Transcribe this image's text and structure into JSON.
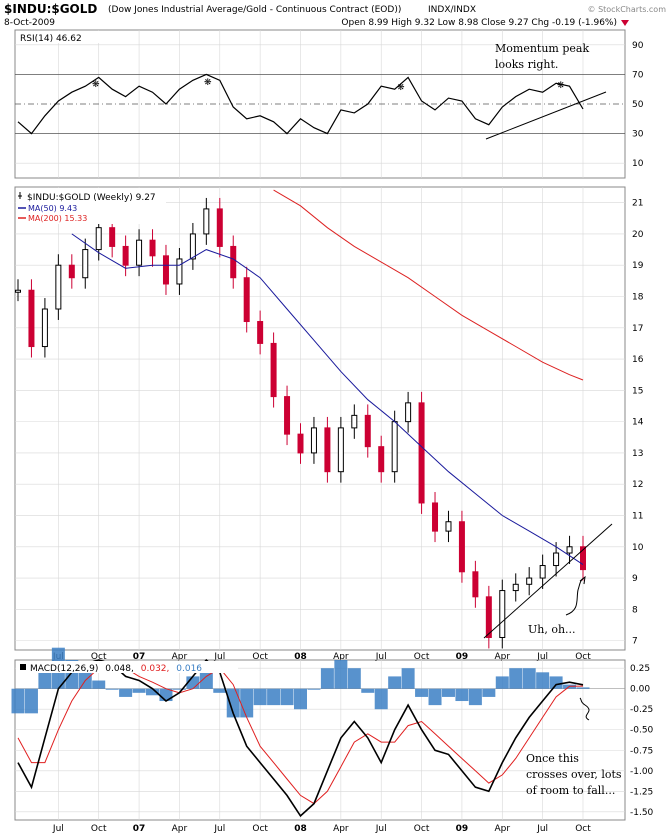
{
  "header": {
    "symbol": "$INDU:$GOLD",
    "description": "(Dow Jones Industrial Average/Gold - Continuous Contract (EOD))",
    "exchange": "INDX/INDX",
    "date": "8-Oct-2009",
    "ohlc_text": "Open 8.99  High 9.32  Low 8.98  Close 9.27  Chg -0.19 (-1.96%)",
    "watermark": "© StockCharts.com"
  },
  "colors": {
    "price_up": "#000000",
    "price_down": "#cc0033",
    "ma50": "#1a1a9c",
    "ma200": "#dd2222",
    "macd_line": "#000000",
    "signal_line": "#e02020",
    "histogram": "#3b7fc4",
    "rsi_line": "#000000",
    "rsi_oversold_fill": "#a05050",
    "grid": "#d8d8d8"
  },
  "chart_data": [
    {
      "type": "line",
      "panel": "rsi",
      "title": "RSI(14) 46.62",
      "ylim": [
        0,
        100
      ],
      "yticks": [
        10,
        30,
        50,
        70,
        90
      ],
      "reference_lines": [
        30,
        50,
        70
      ],
      "annotation": "Momentum peak looks right.",
      "x_date_range": [
        "2006-04",
        "2009-10"
      ],
      "series": [
        {
          "name": "RSI(14)",
          "x": [
            "2006-04",
            "2006-05",
            "2006-06",
            "2006-07",
            "2006-08",
            "2006-09",
            "2006-10",
            "2006-11",
            "2006-12",
            "2007-01",
            "2007-02",
            "2007-03",
            "2007-04",
            "2007-05",
            "2007-06",
            "2007-07",
            "2007-08",
            "2007-09",
            "2007-10",
            "2007-11",
            "2007-12",
            "2008-01",
            "2008-02",
            "2008-03",
            "2008-04",
            "2008-05",
            "2008-06",
            "2008-07",
            "2008-08",
            "2008-09",
            "2008-10",
            "2008-11",
            "2008-12",
            "2009-01",
            "2009-02",
            "2009-03",
            "2009-04",
            "2009-05",
            "2009-06",
            "2009-07",
            "2009-08",
            "2009-09",
            "2009-10"
          ],
          "values": [
            38,
            30,
            42,
            52,
            58,
            62,
            68,
            60,
            55,
            62,
            58,
            50,
            60,
            66,
            70,
            66,
            48,
            40,
            42,
            38,
            30,
            40,
            34,
            30,
            46,
            44,
            50,
            62,
            60,
            68,
            52,
            46,
            54,
            52,
            40,
            36,
            48,
            55,
            60,
            58,
            64,
            62,
            46.62
          ]
        }
      ]
    },
    {
      "type": "line",
      "panel": "price",
      "title": "$INDU:$GOLD (Weekly) 9.27",
      "ylim": [
        6.7,
        21.5
      ],
      "yticks": [
        7,
        8,
        9,
        10,
        11,
        12,
        13,
        14,
        15,
        16,
        17,
        18,
        19,
        20,
        21
      ],
      "annotation": "Uh, oh...",
      "legend": [
        "$INDU:$GOLD (Weekly) 9.27",
        "MA(50) 9.43",
        "MA(200) 15.33"
      ],
      "series": [
        {
          "name": "$INDU:$GOLD",
          "x": [
            "2006-04",
            "2006-05",
            "2006-06",
            "2006-07",
            "2006-08",
            "2006-09",
            "2006-10",
            "2006-11",
            "2006-12",
            "2007-01",
            "2007-02",
            "2007-03",
            "2007-04",
            "2007-05",
            "2007-06",
            "2007-07",
            "2007-08",
            "2007-09",
            "2007-10",
            "2007-11",
            "2007-12",
            "2008-01",
            "2008-02",
            "2008-03",
            "2008-04",
            "2008-05",
            "2008-06",
            "2008-07",
            "2008-08",
            "2008-09",
            "2008-10",
            "2008-11",
            "2008-12",
            "2009-01",
            "2009-02",
            "2009-03",
            "2009-04",
            "2009-05",
            "2009-06",
            "2009-07",
            "2009-08",
            "2009-09",
            "2009-10"
          ],
          "values": [
            18.2,
            16.4,
            17.6,
            19.0,
            18.6,
            19.5,
            20.2,
            19.6,
            19.0,
            19.8,
            19.3,
            18.4,
            19.2,
            20.0,
            20.8,
            19.6,
            18.6,
            17.2,
            16.5,
            14.8,
            13.6,
            13.0,
            13.8,
            12.4,
            13.8,
            14.2,
            13.2,
            12.4,
            14.0,
            14.6,
            11.4,
            10.5,
            10.8,
            9.2,
            8.4,
            7.1,
            8.6,
            8.8,
            9.0,
            9.4,
            9.8,
            10.0,
            9.27
          ]
        },
        {
          "name": "MA(50)",
          "x": [
            "2006-08",
            "2006-10",
            "2006-12",
            "2007-02",
            "2007-04",
            "2007-06",
            "2007-08",
            "2007-10",
            "2007-12",
            "2008-02",
            "2008-04",
            "2008-06",
            "2008-08",
            "2008-10",
            "2008-12",
            "2009-02",
            "2009-04",
            "2009-06",
            "2009-08",
            "2009-10"
          ],
          "values": [
            20.0,
            19.4,
            18.9,
            19.0,
            19.0,
            19.5,
            19.2,
            18.6,
            17.6,
            16.6,
            15.6,
            14.7,
            14.0,
            13.2,
            12.4,
            11.7,
            11.0,
            10.5,
            10.0,
            9.43
          ]
        },
        {
          "name": "MA(200)",
          "x": [
            "2007-11",
            "2008-01",
            "2008-03",
            "2008-05",
            "2008-07",
            "2008-09",
            "2008-11",
            "2009-01",
            "2009-03",
            "2009-05",
            "2009-07",
            "2009-09",
            "2009-10"
          ],
          "values": [
            21.4,
            20.9,
            20.2,
            19.6,
            19.1,
            18.6,
            18.0,
            17.4,
            16.9,
            16.4,
            15.9,
            15.5,
            15.33
          ]
        }
      ]
    },
    {
      "type": "line",
      "panel": "macd",
      "title": "MACD(12,26,9)",
      "title_values": [
        "0.048,",
        "0.032,",
        "0.016"
      ],
      "ylim": [
        -1.6,
        0.35
      ],
      "yticks": [
        0.25,
        0,
        -0.25,
        -0.5,
        -0.75,
        -1,
        -1.25,
        -1.5
      ],
      "annotation": "Once this crosses over, lots of room to fall...",
      "series": [
        {
          "name": "MACD",
          "x": [
            "2006-04",
            "2006-05",
            "2006-06",
            "2006-07",
            "2006-08",
            "2006-09",
            "2006-10",
            "2006-11",
            "2006-12",
            "2007-01",
            "2007-02",
            "2007-03",
            "2007-04",
            "2007-05",
            "2007-06",
            "2007-07",
            "2007-08",
            "2007-09",
            "2007-10",
            "2007-11",
            "2007-12",
            "2008-01",
            "2008-02",
            "2008-03",
            "2008-04",
            "2008-05",
            "2008-06",
            "2008-07",
            "2008-08",
            "2008-09",
            "2008-10",
            "2008-11",
            "2008-12",
            "2009-01",
            "2009-02",
            "2009-03",
            "2009-04",
            "2009-05",
            "2009-06",
            "2009-07",
            "2009-08",
            "2009-09",
            "2009-10"
          ],
          "values": [
            -0.9,
            -1.2,
            -0.6,
            0.0,
            0.2,
            0.3,
            0.35,
            0.3,
            0.15,
            0.1,
            0.0,
            -0.15,
            -0.05,
            0.15,
            0.35,
            0.2,
            -0.3,
            -0.7,
            -0.9,
            -1.1,
            -1.3,
            -1.55,
            -1.4,
            -1.0,
            -0.6,
            -0.4,
            -0.6,
            -0.9,
            -0.5,
            -0.2,
            -0.5,
            -0.75,
            -0.8,
            -1.0,
            -1.2,
            -1.25,
            -0.9,
            -0.6,
            -0.35,
            -0.15,
            0.05,
            0.08,
            0.048
          ]
        },
        {
          "name": "Signal",
          "x": [
            "2006-04",
            "2006-05",
            "2006-06",
            "2006-07",
            "2006-08",
            "2006-09",
            "2006-10",
            "2006-11",
            "2006-12",
            "2007-01",
            "2007-02",
            "2007-03",
            "2007-04",
            "2007-05",
            "2007-06",
            "2007-07",
            "2007-08",
            "2007-09",
            "2007-10",
            "2007-11",
            "2007-12",
            "2008-01",
            "2008-02",
            "2008-03",
            "2008-04",
            "2008-05",
            "2008-06",
            "2008-07",
            "2008-08",
            "2008-09",
            "2008-10",
            "2008-11",
            "2008-12",
            "2009-01",
            "2009-02",
            "2009-03",
            "2009-04",
            "2009-05",
            "2009-06",
            "2009-07",
            "2009-08",
            "2009-09",
            "2009-10"
          ],
          "values": [
            -0.6,
            -0.9,
            -0.9,
            -0.5,
            -0.15,
            0.1,
            0.25,
            0.3,
            0.25,
            0.15,
            0.08,
            0.0,
            -0.05,
            0.0,
            0.15,
            0.25,
            0.05,
            -0.35,
            -0.7,
            -0.9,
            -1.1,
            -1.3,
            -1.4,
            -1.25,
            -0.95,
            -0.65,
            -0.55,
            -0.65,
            -0.65,
            -0.45,
            -0.4,
            -0.55,
            -0.7,
            -0.85,
            -1.0,
            -1.15,
            -1.05,
            -0.85,
            -0.6,
            -0.35,
            -0.1,
            0.03,
            0.032
          ]
        },
        {
          "name": "Histogram",
          "x": [
            "2006-04",
            "2006-05",
            "2006-06",
            "2006-07",
            "2006-08",
            "2006-09",
            "2006-10",
            "2006-11",
            "2006-12",
            "2007-01",
            "2007-02",
            "2007-03",
            "2007-04",
            "2007-05",
            "2007-06",
            "2007-07",
            "2007-08",
            "2007-09",
            "2007-10",
            "2007-11",
            "2007-12",
            "2008-01",
            "2008-02",
            "2008-03",
            "2008-04",
            "2008-05",
            "2008-06",
            "2008-07",
            "2008-08",
            "2008-09",
            "2008-10",
            "2008-11",
            "2008-12",
            "2009-01",
            "2009-02",
            "2009-03",
            "2009-04",
            "2009-05",
            "2009-06",
            "2009-07",
            "2009-08",
            "2009-09",
            "2009-10"
          ],
          "values": [
            -0.3,
            -0.3,
            0.3,
            0.5,
            0.35,
            0.2,
            0.1,
            0.0,
            -0.1,
            -0.05,
            -0.08,
            -0.15,
            0.0,
            0.15,
            0.2,
            -0.05,
            -0.35,
            -0.35,
            -0.2,
            -0.2,
            -0.2,
            -0.25,
            0.0,
            0.25,
            0.35,
            0.25,
            -0.05,
            -0.25,
            0.15,
            0.25,
            -0.1,
            -0.2,
            -0.1,
            -0.15,
            -0.2,
            -0.1,
            0.15,
            0.25,
            0.25,
            0.2,
            0.15,
            0.05,
            0.016
          ]
        }
      ]
    }
  ],
  "x_axis": {
    "labels": [
      "Jul",
      "Oct",
      "07",
      "Apr",
      "Jul",
      "Oct",
      "08",
      "Apr",
      "Jul",
      "Oct",
      "09",
      "Apr",
      "Jul",
      "Oct"
    ],
    "dates": [
      "2006-07",
      "2006-10",
      "2007-01",
      "2007-04",
      "2007-07",
      "2007-10",
      "2008-01",
      "2008-04",
      "2008-07",
      "2008-10",
      "2009-01",
      "2009-04",
      "2009-07",
      "2009-10"
    ]
  }
}
